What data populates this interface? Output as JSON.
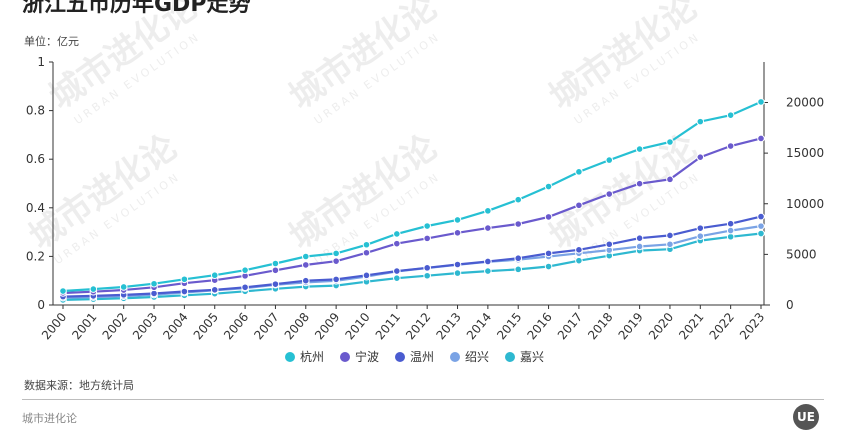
{
  "title": "浙江五市历年GDP走势",
  "unit_label": "单位：亿元",
  "source_label": "数据来源：地方统计局",
  "brand": "城市进化论",
  "watermark": {
    "text": "城市进化论",
    "subtext": "URBAN EVOLUTION"
  },
  "logo_text": "UE",
  "chart_data": {
    "type": "line",
    "x": [
      "2000",
      "2001",
      "2002",
      "2003",
      "2004",
      "2005",
      "2006",
      "2007",
      "2008",
      "2009",
      "2010",
      "2011",
      "2012",
      "2013",
      "2014",
      "2015",
      "2016",
      "2017",
      "2018",
      "2019",
      "2020",
      "2021",
      "2022",
      "2023"
    ],
    "left_axis": {
      "ylim": [
        0,
        1
      ],
      "ticks": [
        0,
        0.2,
        0.4,
        0.6,
        0.8,
        1
      ]
    },
    "right_axis": {
      "ylim": [
        0,
        24000
      ],
      "ticks": [
        0,
        5000,
        10000,
        15000,
        20000
      ]
    },
    "series": [
      {
        "name": "杭州",
        "color": "#26c0d3",
        "values": [
          1380,
          1570,
          1780,
          2100,
          2540,
          2940,
          3440,
          4100,
          4790,
          5100,
          5950,
          7020,
          7800,
          8400,
          9300,
          10400,
          11700,
          13150,
          14310,
          15400,
          16100,
          18110,
          18750,
          20060
        ]
      },
      {
        "name": "宁波",
        "color": "#6a5acd",
        "values": [
          1190,
          1310,
          1480,
          1750,
          2150,
          2450,
          2880,
          3430,
          3960,
          4330,
          5160,
          6060,
          6580,
          7130,
          7600,
          8000,
          8700,
          9850,
          10960,
          11980,
          12410,
          14600,
          15700,
          16450
        ]
      },
      {
        "name": "温州",
        "color": "#4a5cd0",
        "values": [
          830,
          900,
          1000,
          1140,
          1330,
          1500,
          1750,
          2060,
          2400,
          2530,
          2930,
          3350,
          3670,
          4000,
          4300,
          4620,
          5100,
          5450,
          6000,
          6600,
          6870,
          7590,
          8030,
          8730
        ]
      },
      {
        "name": "绍兴",
        "color": "#7aa3e5",
        "values": [
          720,
          780,
          870,
          1030,
          1230,
          1450,
          1670,
          2000,
          2230,
          2390,
          2800,
          3320,
          3650,
          3970,
          4270,
          4470,
          4790,
          5110,
          5420,
          5780,
          6000,
          6800,
          7350,
          7790
        ]
      },
      {
        "name": "嘉兴",
        "color": "#2eb8d0",
        "values": [
          500,
          580,
          660,
          790,
          960,
          1120,
          1350,
          1600,
          1820,
          1920,
          2300,
          2650,
          2890,
          3150,
          3350,
          3520,
          3800,
          4380,
          4870,
          5370,
          5510,
          6360,
          6740,
          7060
        ]
      }
    ]
  }
}
